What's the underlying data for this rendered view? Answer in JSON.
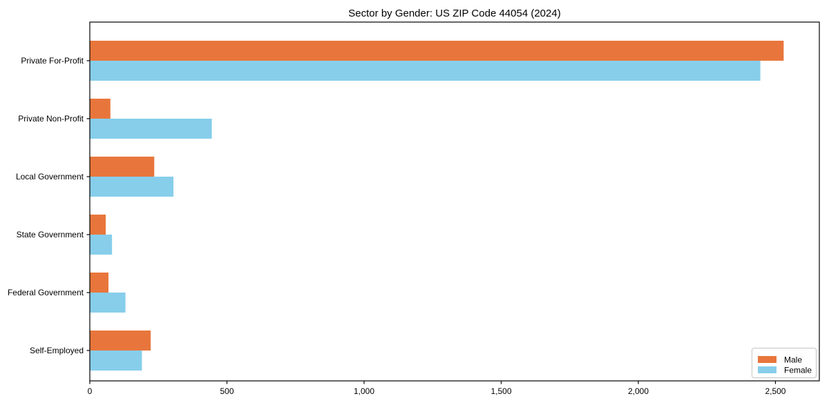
{
  "page": {
    "background": "#ffffff"
  },
  "chart_data": {
    "type": "bar",
    "orientation": "horizontal",
    "title": "Sector by Gender: US ZIP Code 44054 (2024)",
    "categories": [
      "Private For-Profit",
      "Private Non-Profit",
      "Local Government",
      "State Government",
      "Federal Government",
      "Self-Employed"
    ],
    "series": [
      {
        "name": "Male",
        "color": "#e8763c",
        "values": [
          2530,
          75,
          235,
          58,
          68,
          222
        ]
      },
      {
        "name": "Female",
        "color": "#87ceeb",
        "values": [
          2445,
          445,
          305,
          81,
          130,
          190
        ]
      }
    ],
    "xlabel": "",
    "ylabel": "",
    "xlim": [
      0,
      2660
    ],
    "xticks": [
      0,
      500,
      1000,
      1500,
      2000,
      2500
    ],
    "xtick_labels": [
      "0",
      "500",
      "1,000",
      "1,500",
      "2,000",
      "2,500"
    ],
    "grid": false,
    "legend": {
      "position": "lower right",
      "entries": [
        "Male",
        "Female"
      ]
    },
    "axis_color": "#000000",
    "text_color": "#000000",
    "legend_border_color": "#c4c4c4"
  }
}
